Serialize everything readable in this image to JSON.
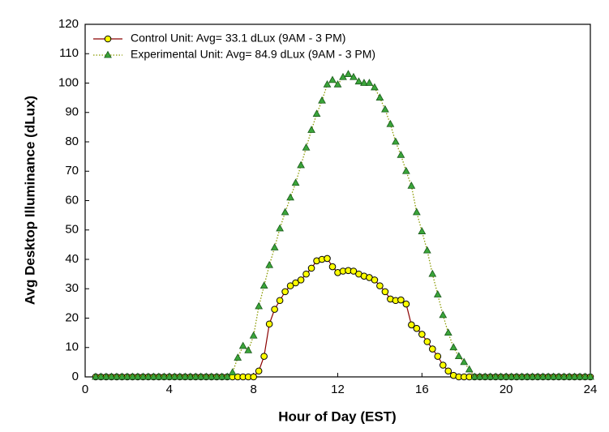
{
  "chart_data": {
    "type": "line",
    "xlabel": "Hour of Day (EST)",
    "ylabel": "Avg Desktop Illuminance (dLux)",
    "x": [
      0.5,
      0.75,
      1,
      1.25,
      1.5,
      1.75,
      2,
      2.25,
      2.5,
      2.75,
      3,
      3.25,
      3.5,
      3.75,
      4,
      4.25,
      4.5,
      4.75,
      5,
      5.25,
      5.5,
      5.75,
      6,
      6.25,
      6.5,
      6.75,
      7,
      7.25,
      7.5,
      7.75,
      8,
      8.25,
      8.5,
      8.75,
      9,
      9.25,
      9.5,
      9.75,
      10,
      10.25,
      10.5,
      10.75,
      11,
      11.25,
      11.5,
      11.75,
      12,
      12.25,
      12.5,
      12.75,
      13,
      13.25,
      13.5,
      13.75,
      14,
      14.25,
      14.5,
      14.75,
      15,
      15.25,
      15.5,
      15.75,
      16,
      16.25,
      16.5,
      16.75,
      17,
      17.25,
      17.5,
      17.75,
      18,
      18.25,
      18.5,
      18.75,
      19,
      19.25,
      19.5,
      19.75,
      20,
      20.25,
      20.5,
      20.75,
      21,
      21.25,
      21.5,
      21.75,
      22,
      22.25,
      22.5,
      22.75,
      23,
      23.25,
      23.5,
      23.75,
      24
    ],
    "series": [
      {
        "name": "Control Unit: Avg= 33.1 dLux (9AM - 3 PM)",
        "color": "#8b0000",
        "marker_color": "#ffff00",
        "marker": "circle",
        "dash": "solid",
        "values": [
          0,
          0,
          0,
          0,
          0,
          0,
          0,
          0,
          0,
          0,
          0,
          0,
          0,
          0,
          0,
          0,
          0,
          0,
          0,
          0,
          0,
          0,
          0,
          0,
          0,
          0,
          0,
          0,
          0,
          0,
          0,
          2,
          7,
          18,
          23,
          26,
          29,
          31,
          32,
          33,
          35,
          37,
          39.5,
          40,
          40.3,
          37.5,
          35.5,
          36,
          36.2,
          36,
          35,
          34.3,
          33.8,
          33,
          31,
          29,
          26.5,
          26,
          26.2,
          24.8,
          17.7,
          16.5,
          14.5,
          12,
          9.5,
          7,
          4,
          2,
          0.5,
          0,
          0,
          0,
          0,
          0,
          0,
          0,
          0,
          0,
          0,
          0,
          0,
          0,
          0,
          0,
          0,
          0,
          0,
          0,
          0,
          0,
          0,
          0,
          0,
          0,
          0
        ]
      },
      {
        "name": "Experimental Unit: Avg= 84.9 dLux (9AM - 3 PM)",
        "color": "#8a9a00",
        "marker_color": "#3aa53a",
        "marker": "triangle",
        "dash": "dotted",
        "values": [
          0,
          0,
          0,
          0,
          0,
          0,
          0,
          0,
          0,
          0,
          0,
          0,
          0,
          0,
          0,
          0,
          0,
          0,
          0,
          0,
          0,
          0,
          0,
          0,
          0,
          0,
          1.5,
          6.5,
          10.5,
          9,
          14,
          24,
          31,
          38,
          44,
          50.5,
          56,
          61,
          66,
          72,
          78,
          84,
          89.5,
          94,
          99.5,
          101,
          99.5,
          102,
          103,
          102,
          100.5,
          100,
          100,
          98.5,
          95,
          91,
          86,
          80,
          75.5,
          70,
          65,
          56,
          49.5,
          43,
          35,
          28,
          21,
          15,
          10,
          7,
          5,
          2.5,
          0,
          0,
          0,
          0,
          0,
          0,
          0,
          0,
          0,
          0,
          0,
          0,
          0,
          0,
          0,
          0,
          0,
          0,
          0,
          0,
          0,
          0,
          0
        ]
      }
    ],
    "xlim": [
      0,
      24
    ],
    "xticks": [
      0,
      4,
      8,
      12,
      16,
      20,
      24
    ],
    "ylim": [
      0,
      120
    ],
    "yticks": [
      0,
      10,
      20,
      30,
      40,
      50,
      60,
      70,
      80,
      90,
      100,
      110,
      120
    ],
    "legend": "upper-left",
    "grid": false
  }
}
